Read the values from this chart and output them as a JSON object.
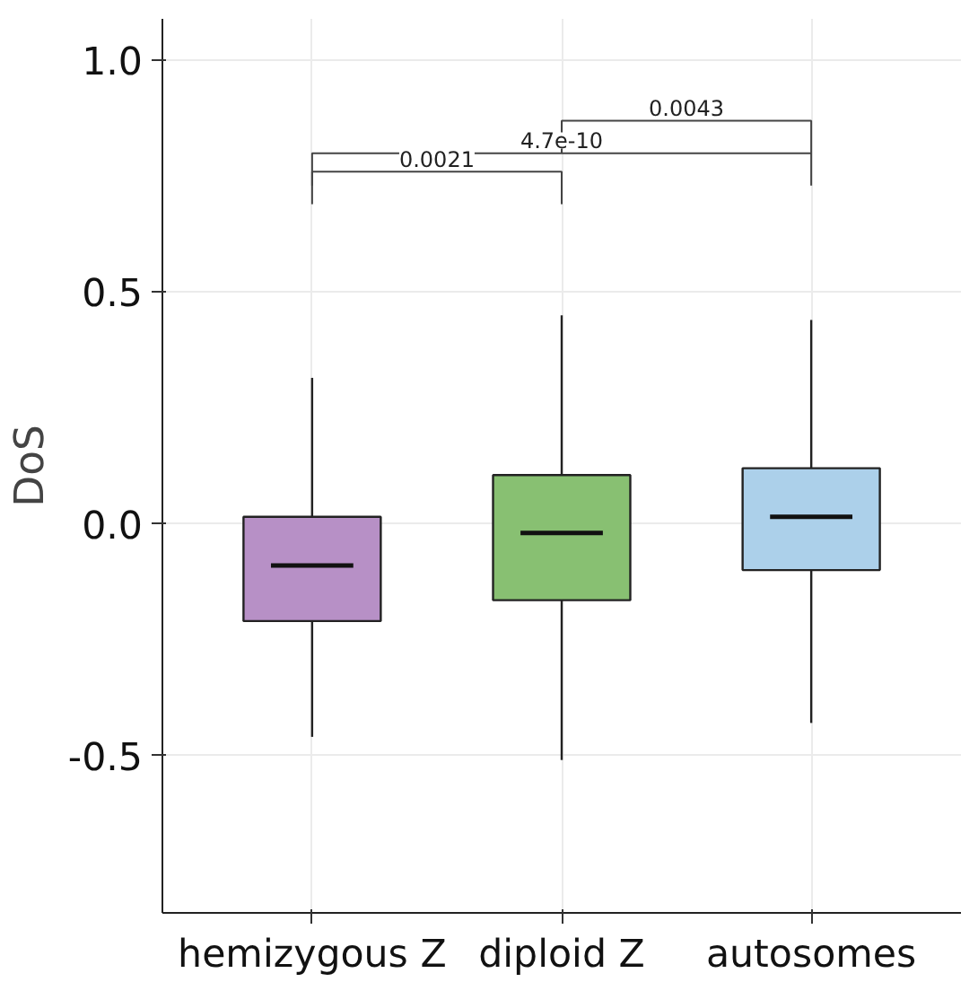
{
  "chart_data": {
    "type": "box",
    "ylabel": "DoS",
    "categories": [
      "hemizygous Z",
      "diploid Z",
      "autosomes"
    ],
    "colors": [
      "#b790c6",
      "#88c072",
      "#acd0ea"
    ],
    "boxes": [
      {
        "low": -0.46,
        "q1": -0.21,
        "median": -0.09,
        "q3": 0.015,
        "high": 0.315
      },
      {
        "low": -0.51,
        "q1": -0.165,
        "median": -0.02,
        "q3": 0.105,
        "high": 0.45
      },
      {
        "low": -0.43,
        "q1": -0.1,
        "median": 0.015,
        "q3": 0.12,
        "high": 0.44
      }
    ],
    "ylim": [
      -0.84,
      1.09
    ],
    "yticks": [
      {
        "value": -0.5,
        "label": "-0.5"
      },
      {
        "value": 0,
        "label": "0.0"
      },
      {
        "value": 0.5,
        "label": "0.5"
      },
      {
        "value": 1,
        "label": "1.0"
      }
    ],
    "grid": true,
    "annotations": [
      "0.0021",
      "4.7e-10",
      "0.0043"
    ]
  }
}
